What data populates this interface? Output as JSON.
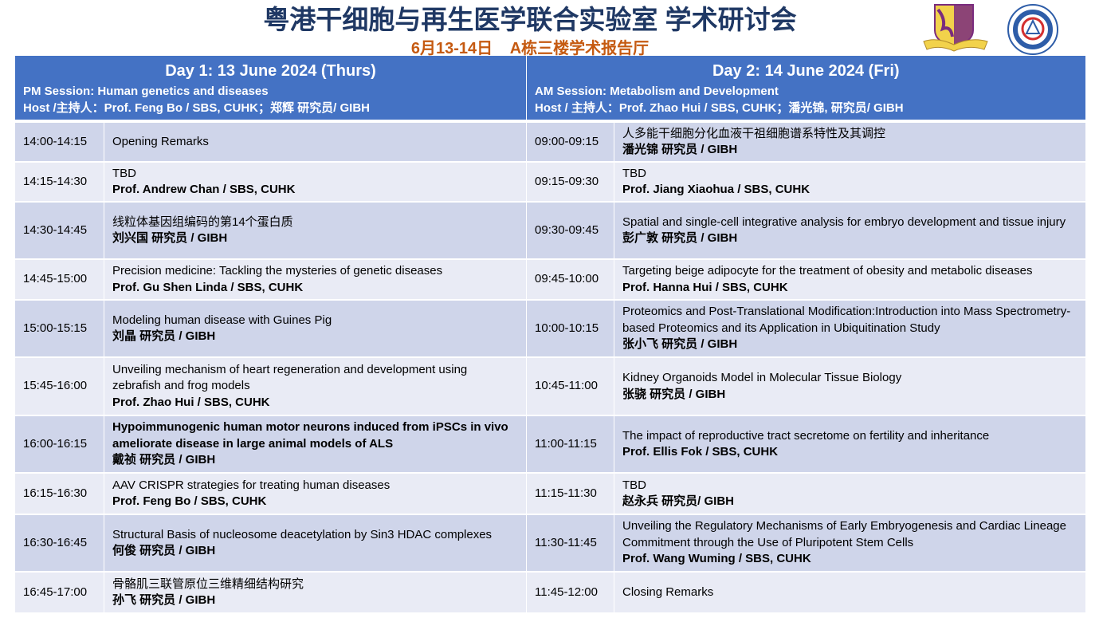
{
  "header": {
    "title": "粤港干细胞与再生医学联合实验室 学术研讨会",
    "date": "6月13-14日",
    "venue": "A栋三楼学术报告厅",
    "logos": [
      "CUHK crest",
      "GIBH emblem"
    ],
    "title_color": "#1F3864",
    "subtitle_color": "#C55A11"
  },
  "day1": {
    "heading": "Day 1: 13 June 2024 (Thurs)",
    "session": "PM Session: Human genetics and diseases",
    "host": "Host /主持人：Prof. Feng Bo / SBS, CUHK；郑辉 研究员/ GIBH"
  },
  "day2": {
    "heading": "Day 2: 14 June 2024 (Fri)",
    "session": "AM Session:  Metabolism and Development",
    "host": "Host / 主持人：Prof. Zhao Hui / SBS, CUHK；潘光锦, 研究员/ GIBH"
  },
  "colors": {
    "header_bg": "#4472C4",
    "row_dark": "#CFD5EA",
    "row_light": "#E9EBF5"
  },
  "rows": [
    {
      "h": 48,
      "left": {
        "time": "14:00-14:15",
        "title": "Opening Remarks",
        "speaker": ""
      },
      "right": {
        "time": "09:00-09:15",
        "title": "人多能干细胞分化血液干祖细胞谱系特性及其调控",
        "speaker": "潘光锦 研究员 / GIBH"
      }
    },
    {
      "h": 48,
      "left": {
        "time": "14:15-14:30",
        "title": "TBD",
        "speaker": "Prof. Andrew Chan / SBS, CUHK"
      },
      "right": {
        "time": "09:15-09:30",
        "title": "TBD",
        "speaker": "Prof.  Jiang Xiaohua / SBS, CUHK"
      }
    },
    {
      "h": 70,
      "left": {
        "time": "14:30-14:45",
        "title": "线粒体基因组编码的第14个蛋白质",
        "speaker": "刘兴国 研究员 / GIBH"
      },
      "right": {
        "time": "09:30-09:45",
        "title": "Spatial and single-cell integrative analysis for embryo development and tissue injury",
        "speaker": "彭广敦 研究员 / GIBH"
      }
    },
    {
      "h": 49,
      "left": {
        "time": "14:45-15:00",
        "title": "Precision medicine: Tackling the mysteries of genetic diseases",
        "speaker": "Prof. Gu Shen Linda / SBS, CUHK"
      },
      "right": {
        "time": "09:45-10:00",
        "title": "Targeting beige adipocyte for the treatment of obesity and metabolic diseases",
        "speaker": "Prof. Hanna Hui / SBS, CUHK"
      }
    },
    {
      "h": 70,
      "left": {
        "time": "15:00-15:15",
        "title": "Modeling human disease with Guines Pig",
        "speaker": "刘晶 研究员 / GIBH"
      },
      "right": {
        "time": "10:00-10:15",
        "title": "Proteomics and Post-Translational Modification:Introduction into Mass Spectrometry-based Proteomics and its Application in Ubiquitination Study",
        "speaker": "张小飞 研究员 / GIBH"
      }
    },
    {
      "h": 71,
      "left": {
        "time": "15:45-16:00",
        "title": "Unveiling mechanism of heart regeneration and development using zebrafish and frog models",
        "speaker": "Prof. Zhao Hui / SBS, CUHK"
      },
      "right": {
        "time": "10:45-11:00",
        "title": "Kidney Organoids Model in Molecular Tissue Biology",
        "speaker": "张骁 研究员 / GIBH"
      }
    },
    {
      "h": 70,
      "left": {
        "time": "16:00-16:15",
        "title": "Hypoimmunogenic human motor neurons induced from iPSCs in vivo ameliorate disease in large animal models of ALS",
        "title_bold": true,
        "speaker": "戴祯 研究员 / GIBH"
      },
      "right": {
        "time": "11:00-11:15",
        "title": "The impact of reproductive tract secretome on fertility and inheritance",
        "speaker": "Prof. Ellis Fok / SBS, CUHK"
      }
    },
    {
      "h": 50,
      "left": {
        "time": "16:15-16:30",
        "title": "AAV CRISPR strategies for treating human diseases",
        "speaker": "Prof. Feng Bo / SBS, CUHK"
      },
      "right": {
        "time": "11:15-11:30",
        "title": "TBD",
        "speaker": "赵永兵  研究员/ GIBH"
      }
    },
    {
      "h": 70,
      "left": {
        "time": "16:30-16:45",
        "title": "Structural Basis of nucleosome deacetylation by Sin3 HDAC complexes",
        "speaker": "何俊 研究员 / GIBH"
      },
      "right": {
        "time": "11:30-11:45",
        "title": "Unveiling the Regulatory Mechanisms of Early Embryogenesis and Cardiac Lineage Commitment through the Use of Pluripotent Stem Cells",
        "speaker": "Prof. Wang Wuming / SBS, CUHK"
      }
    },
    {
      "h": 50,
      "left": {
        "time": "16:45-17:00",
        "title": "骨骼肌三联管原位三维精细结构研究",
        "speaker": "孙飞  研究员 / GIBH"
      },
      "right": {
        "time": "11:45-12:00",
        "title": "Closing Remarks",
        "speaker": ""
      }
    }
  ]
}
